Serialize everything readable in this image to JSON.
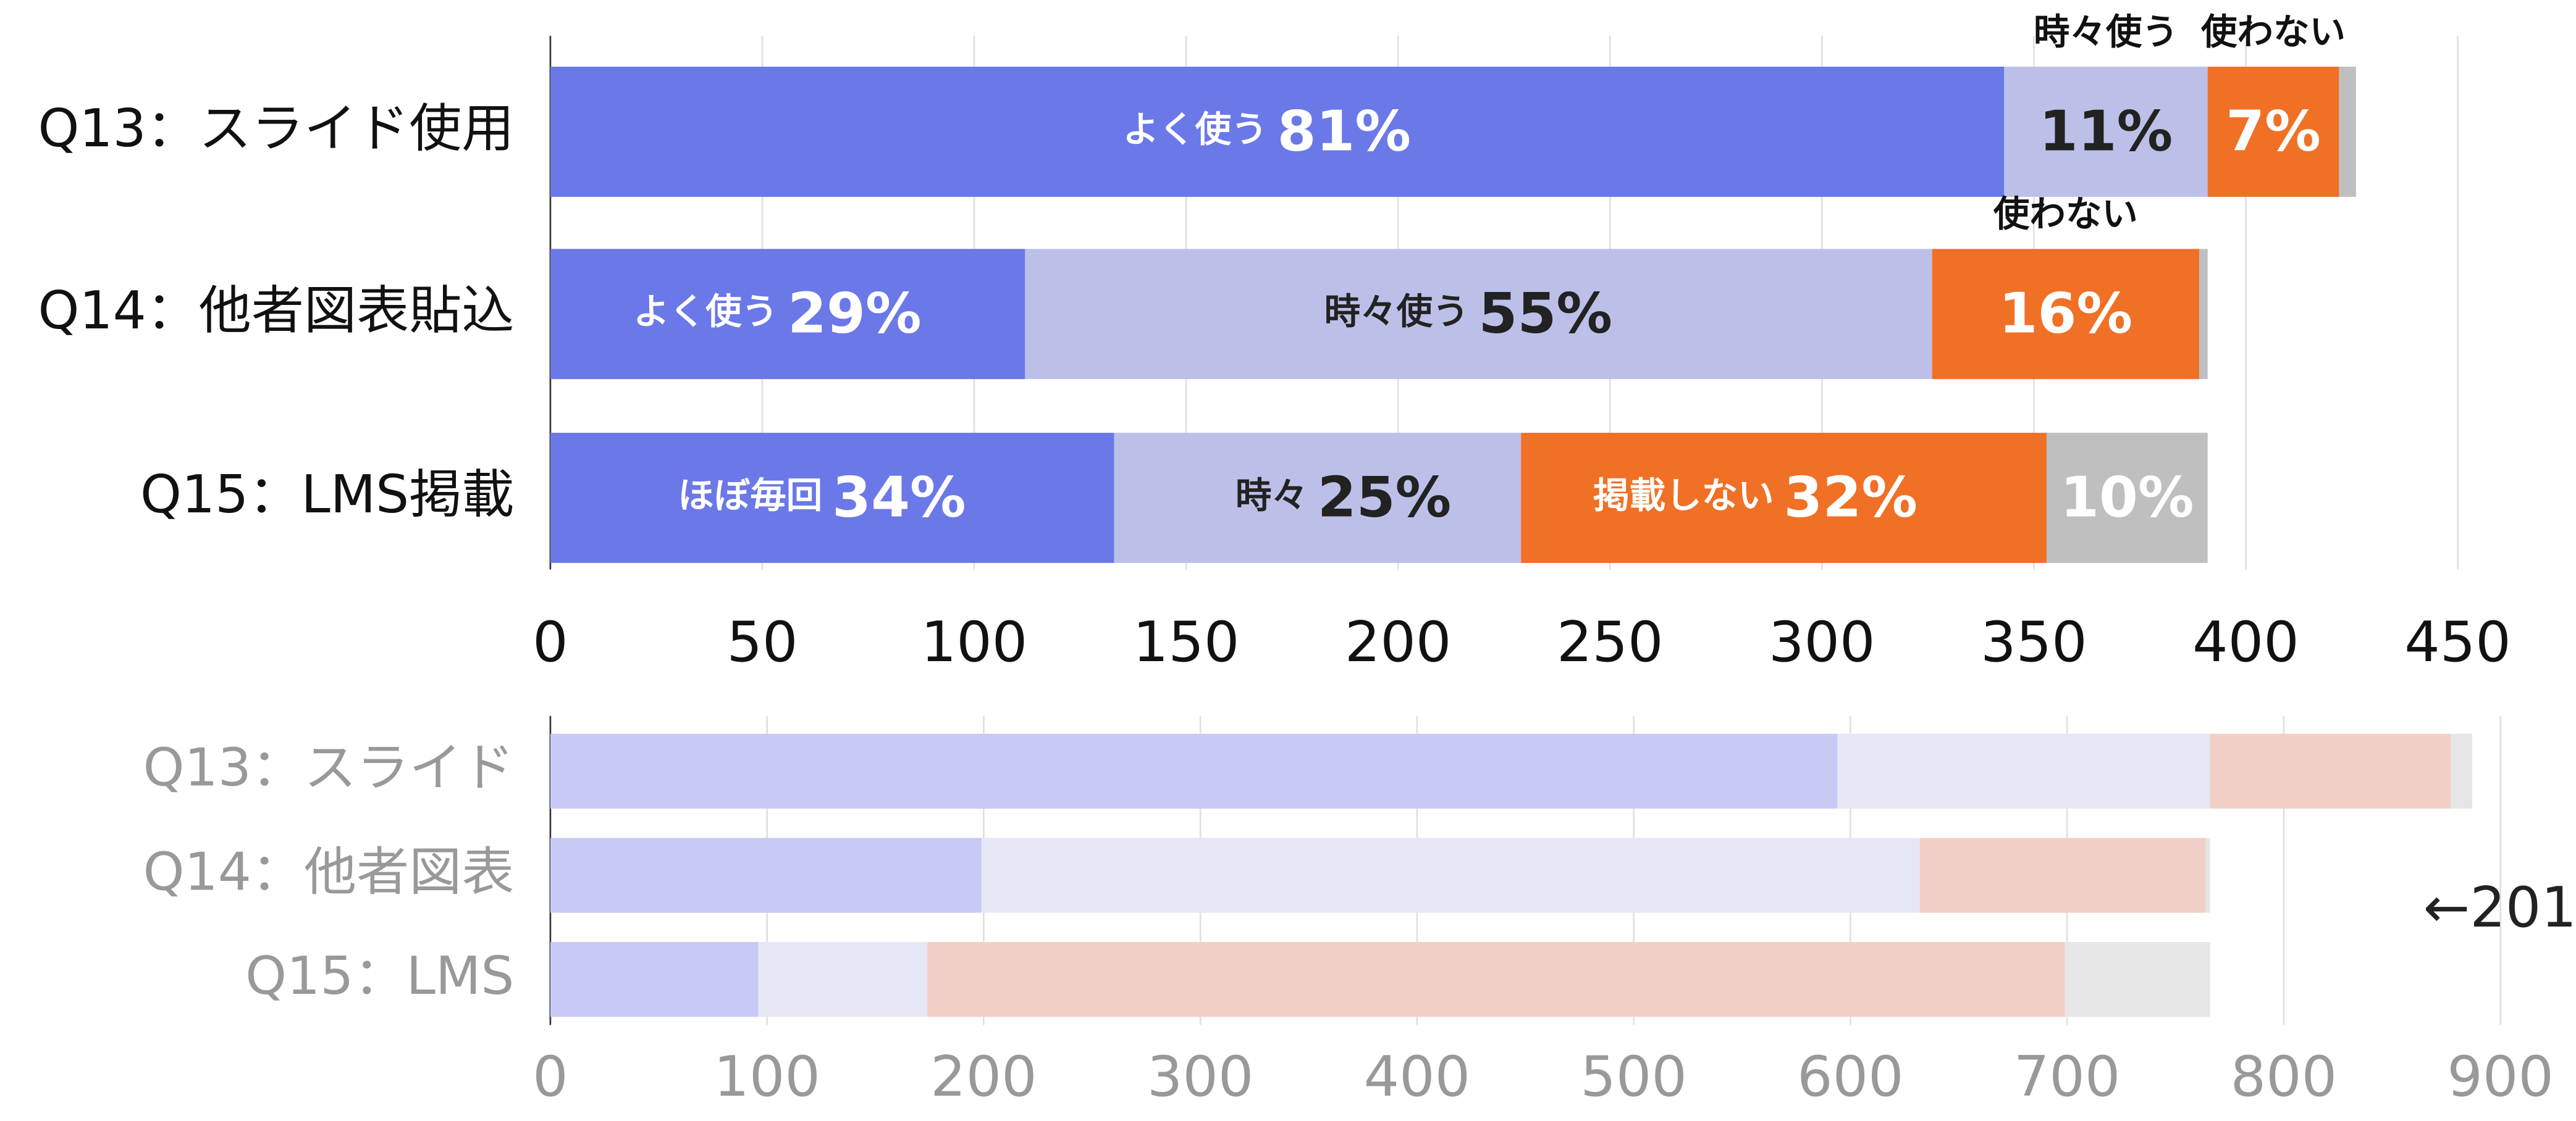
{
  "chart_data": [
    {
      "type": "bar",
      "orientation": "horizontal",
      "stacked": true,
      "categories": [
        "Q13：スライド使用",
        "Q14：他者図表貼込",
        "Q15：LMS掲載"
      ],
      "series": [
        {
          "color": "#6b78e8",
          "values": [
            343,
            112,
            133
          ],
          "segment_labels": [
            "よく使う",
            "よく使う",
            "ほぼ毎回"
          ],
          "value_labels": [
            "81%",
            "29%",
            "34%"
          ]
        },
        {
          "color": "#bcc0e8",
          "values": [
            48,
            214,
            96
          ],
          "segment_labels": [
            "時々使う",
            "時々使う",
            "時々"
          ],
          "value_labels": [
            "11%",
            "55%",
            "25%"
          ]
        },
        {
          "color": "#f07025",
          "values": [
            31,
            63,
            124
          ],
          "segment_labels": [
            "使わない",
            "使わない",
            "掲載しない"
          ],
          "value_labels": [
            "7%",
            "16%",
            "32%"
          ]
        },
        {
          "color": "#bfbfbf",
          "values": [
            4,
            2,
            38
          ],
          "segment_labels": [
            null,
            null,
            null
          ],
          "value_labels": [
            null,
            null,
            "10%"
          ]
        }
      ],
      "xlim": [
        0,
        450
      ],
      "xticks": [
        0,
        50,
        100,
        150,
        200,
        250,
        300,
        350,
        400,
        450
      ],
      "grid": true
    },
    {
      "type": "bar",
      "orientation": "horizontal",
      "stacked": true,
      "categories": [
        "Q13：スライド",
        "Q14：他者図表",
        "Q15：LMS"
      ],
      "series": [
        {
          "color": "#c8caf5",
          "values": [
            594,
            199,
            96
          ]
        },
        {
          "color": "#e6e7f4",
          "values": [
            172,
            433,
            78
          ]
        },
        {
          "color": "#f2cfc6",
          "values": [
            111,
            132,
            525
          ]
        },
        {
          "color": "#e6e6e6",
          "values": [
            10,
            2,
            67
          ]
        }
      ],
      "xlim": [
        0,
        900
      ],
      "xticks": [
        0,
        100,
        200,
        300,
        400,
        500,
        600,
        700,
        800,
        900
      ],
      "grid": true,
      "annotation": "←201"
    }
  ]
}
